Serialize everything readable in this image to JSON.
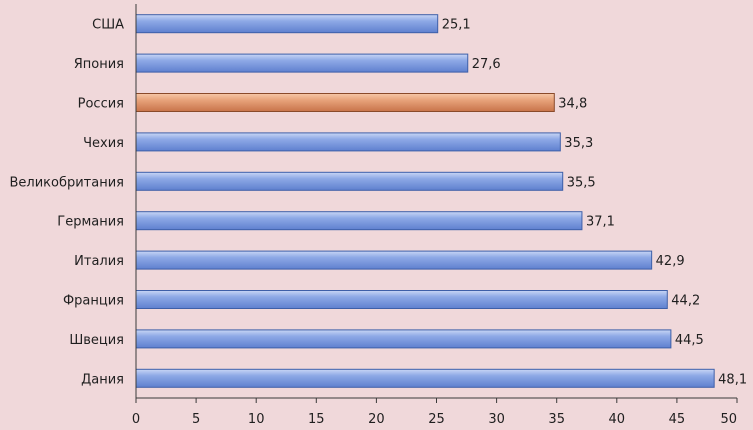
{
  "chart_data": {
    "type": "bar",
    "orientation": "horizontal",
    "categories": [
      "США",
      "Япония",
      "Россия",
      "Чехия",
      "Великобритания",
      "Германия",
      "Италия",
      "Франция",
      "Швеция",
      "Дания"
    ],
    "values": [
      25.1,
      27.6,
      34.8,
      35.3,
      35.5,
      37.1,
      42.9,
      44.2,
      44.5,
      48.1
    ],
    "value_labels": [
      "25,1",
      "27,6",
      "34,8",
      "35,3",
      "35,5",
      "37,1",
      "42,9",
      "44,2",
      "44,5",
      "48,1"
    ],
    "highlight_category": "Россия",
    "xlim": [
      0,
      50
    ],
    "xticks": [
      "0",
      "5",
      "10",
      "15",
      "20",
      "25",
      "30",
      "35",
      "40",
      "45",
      "50"
    ],
    "grid": false,
    "legend": "none",
    "colors": {
      "bar": "#7f9fe0",
      "bar_dark": "#3e5fa8",
      "highlight": "#e09a72",
      "highlight_dark": "#8a4a2a",
      "background": "#f0d8da",
      "axis": "#3a3a3a"
    }
  }
}
